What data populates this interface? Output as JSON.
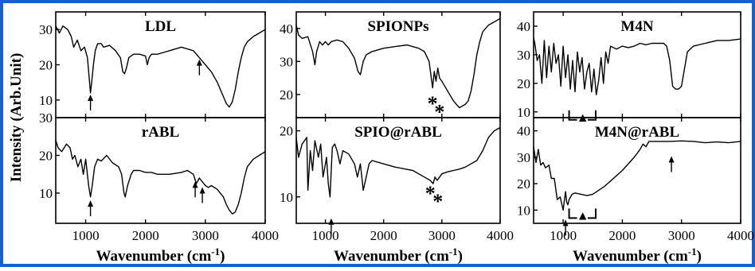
{
  "frame_color": "#1a5fd0",
  "ylabel": "Intensity (Arb.Unit)",
  "xlabel_main": "Wavenumber (cm",
  "xlabel_sup": "-1",
  "xlabel_close": ")",
  "x_ticks": [
    "1000",
    "2000",
    "3000",
    "4000"
  ],
  "chart_data": [
    {
      "type": "line",
      "title": "LDL",
      "xlim": [
        500,
        4000
      ],
      "ylim": [
        5,
        35
      ],
      "yticks": [
        10,
        20,
        30
      ],
      "annotations": [
        "arrow",
        "arrow"
      ],
      "series": [
        {
          "x": [
            500,
            560,
            620,
            700,
            760,
            800,
            860,
            920,
            980,
            1030,
            1060,
            1080,
            1100,
            1130,
            1160,
            1200,
            1260,
            1300,
            1400,
            1500,
            1580,
            1620,
            1650,
            1680,
            1720,
            1800,
            1900,
            2000,
            2030,
            2060,
            2100,
            2200,
            2300,
            2400,
            2600,
            2800,
            2900,
            2950,
            3000,
            3050,
            3100,
            3200,
            3300,
            3350,
            3400,
            3450,
            3500,
            3550,
            3600,
            3650,
            3700,
            3800,
            3900,
            4000
          ],
          "y": [
            31,
            29,
            31,
            30,
            28,
            25,
            27,
            24,
            25,
            22,
            16,
            12,
            15,
            20,
            24,
            26,
            26,
            25,
            25.5,
            24,
            22,
            18,
            17.5,
            19,
            22,
            23,
            23,
            22.5,
            20,
            22,
            23,
            23,
            23.5,
            24,
            25,
            24,
            22,
            21,
            20,
            19,
            18,
            15,
            11,
            9,
            8,
            9.5,
            13,
            18,
            22,
            25,
            26.5,
            28,
            29,
            30
          ]
        }
      ]
    },
    {
      "type": "line",
      "title": "rABL",
      "xlim": [
        500,
        4000
      ],
      "ylim": [
        2,
        30
      ],
      "yticks": [
        10,
        20,
        30
      ],
      "annotations": [
        "arrow",
        "arrow",
        "arrow"
      ],
      "series": [
        {
          "x": [
            500,
            540,
            600,
            680,
            740,
            780,
            820,
            870,
            920,
            960,
            1000,
            1050,
            1080,
            1110,
            1150,
            1200,
            1260,
            1350,
            1450,
            1550,
            1600,
            1640,
            1660,
            1700,
            1760,
            1800,
            1900,
            2000,
            2100,
            2200,
            2400,
            2600,
            2700,
            2800,
            2850,
            2900,
            2950,
            3000,
            3050,
            3100,
            3200,
            3300,
            3350,
            3400,
            3450,
            3500,
            3550,
            3600,
            3650,
            3700,
            3800,
            3900,
            4000
          ],
          "y": [
            24,
            22,
            21,
            23,
            22,
            19,
            20,
            17,
            19,
            15,
            19,
            12,
            9,
            12,
            17,
            19,
            18.5,
            20,
            18,
            17,
            15,
            10,
            9,
            12,
            15,
            16,
            16,
            15.5,
            15.5,
            15,
            15,
            15.5,
            16,
            15,
            12.5,
            14,
            13,
            12,
            11.5,
            12,
            11,
            9,
            7,
            5.5,
            4.5,
            5,
            7,
            10,
            14,
            17,
            19,
            20,
            21
          ]
        }
      ]
    },
    {
      "type": "line",
      "title": "SPIONPs",
      "xlim": [
        500,
        4000
      ],
      "ylim": [
        13,
        45
      ],
      "yticks": [
        20,
        30,
        40
      ],
      "annotations": [
        "*",
        "*"
      ],
      "series": [
        {
          "x": [
            500,
            540,
            600,
            700,
            780,
            820,
            850,
            900,
            950,
            1000,
            1050,
            1100,
            1200,
            1300,
            1400,
            1500,
            1560,
            1600,
            1650,
            1700,
            1800,
            1900,
            2000,
            2200,
            2400,
            2600,
            2700,
            2780,
            2840,
            2870,
            2900,
            2930,
            2960,
            3000,
            3100,
            3200,
            3300,
            3400,
            3450,
            3500,
            3550,
            3600,
            3650,
            3700,
            3800,
            3900,
            4000
          ],
          "y": [
            41,
            38,
            37,
            37.5,
            33,
            29,
            33,
            36,
            35,
            36,
            35,
            36,
            36.5,
            36,
            34,
            31,
            27,
            26,
            30,
            32,
            33,
            33.5,
            34,
            34.5,
            35,
            34,
            33,
            30,
            22,
            27,
            24,
            28,
            25,
            24,
            21,
            18,
            16,
            17,
            18,
            21,
            26,
            32,
            36,
            39,
            41,
            42,
            43
          ]
        }
      ]
    },
    {
      "type": "line",
      "title": "SPIO@rABL",
      "xlim": [
        500,
        4000
      ],
      "ylim": [
        6,
        22
      ],
      "yticks": [
        10,
        20
      ],
      "annotations": [
        "arrow",
        "*",
        "*"
      ],
      "series": [
        {
          "x": [
            500,
            540,
            600,
            680,
            700,
            740,
            780,
            820,
            880,
            920,
            960,
            1000,
            1020,
            1050,
            1080,
            1100,
            1120,
            1160,
            1200,
            1250,
            1300,
            1400,
            1500,
            1550,
            1600,
            1650,
            1700,
            1750,
            1800,
            2000,
            2200,
            2500,
            2700,
            2800,
            2850,
            2880,
            2920,
            3000,
            3100,
            3200,
            3300,
            3400,
            3500,
            3600,
            3700,
            3800,
            3900,
            4000
          ],
          "y": [
            19,
            16,
            18,
            19,
            11,
            17,
            14,
            18.5,
            16,
            18,
            13,
            15,
            16,
            12,
            10,
            14,
            17.5,
            18,
            17,
            15,
            17,
            16.5,
            15,
            13,
            15,
            11,
            13,
            15,
            15.5,
            15,
            14.5,
            14,
            13,
            12.5,
            12,
            13,
            12.5,
            13.5,
            13.8,
            14,
            14.2,
            14.5,
            15,
            15.5,
            17,
            19,
            20,
            20.5
          ]
        }
      ]
    },
    {
      "type": "line",
      "title": "M4N",
      "xlim": [
        500,
        4000
      ],
      "ylim": [
        8,
        45
      ],
      "yticks": [
        10,
        20,
        30,
        40
      ],
      "annotations": [
        "▲"
      ],
      "series": [
        {
          "x": [
            500,
            520,
            560,
            600,
            640,
            680,
            720,
            760,
            800,
            840,
            880,
            920,
            960,
            1000,
            1040,
            1080,
            1120,
            1160,
            1200,
            1240,
            1280,
            1320,
            1360,
            1400,
            1440,
            1480,
            1520,
            1560,
            1600,
            1640,
            1680,
            1720,
            1760,
            1800,
            1900,
            2000,
            2100,
            2200,
            2300,
            2400,
            2500,
            2600,
            2700,
            2750,
            2800,
            2850,
            2900,
            2950,
            3000,
            3100,
            3200,
            3400,
            3600,
            3800,
            4000
          ],
          "y": [
            36,
            34,
            28,
            30,
            20,
            35,
            22,
            33,
            24,
            34,
            27,
            30,
            19,
            33,
            22,
            30,
            18,
            28,
            17,
            31,
            24,
            29,
            18,
            24,
            27,
            17,
            25,
            16,
            21,
            29,
            20,
            31,
            27,
            33,
            32,
            33,
            32.5,
            33,
            34,
            33.5,
            34,
            34,
            34,
            33,
            28,
            19,
            18,
            18,
            19,
            31,
            33,
            34,
            35,
            35,
            35.5
          ]
        }
      ]
    },
    {
      "type": "line",
      "title": "M4N@rABL",
      "xlim": [
        500,
        4000
      ],
      "ylim": [
        5,
        45
      ],
      "yticks": [
        10,
        20,
        30,
        40
      ],
      "annotations": [
        "arrow",
        "arrow",
        "▲"
      ],
      "series": [
        {
          "x": [
            500,
            540,
            580,
            620,
            660,
            700,
            760,
            800,
            850,
            900,
            950,
            1000,
            1040,
            1060,
            1080,
            1100,
            1150,
            1200,
            1300,
            1400,
            1500,
            1600,
            1700,
            1800,
            2000,
            2200,
            2300,
            2350,
            2400,
            2450,
            2500,
            2600,
            2800,
            3000,
            3200,
            3400,
            3600,
            3800,
            4000
          ],
          "y": [
            34,
            28,
            33,
            27,
            28,
            26,
            27,
            22,
            22,
            14,
            15,
            10,
            17,
            13,
            12,
            14,
            16,
            16.5,
            16,
            15.5,
            16,
            17.5,
            19,
            21,
            25,
            30,
            33,
            35,
            34,
            36,
            36,
            36,
            36,
            36.2,
            36,
            35.5,
            35.8,
            35.5,
            36
          ]
        }
      ]
    }
  ]
}
